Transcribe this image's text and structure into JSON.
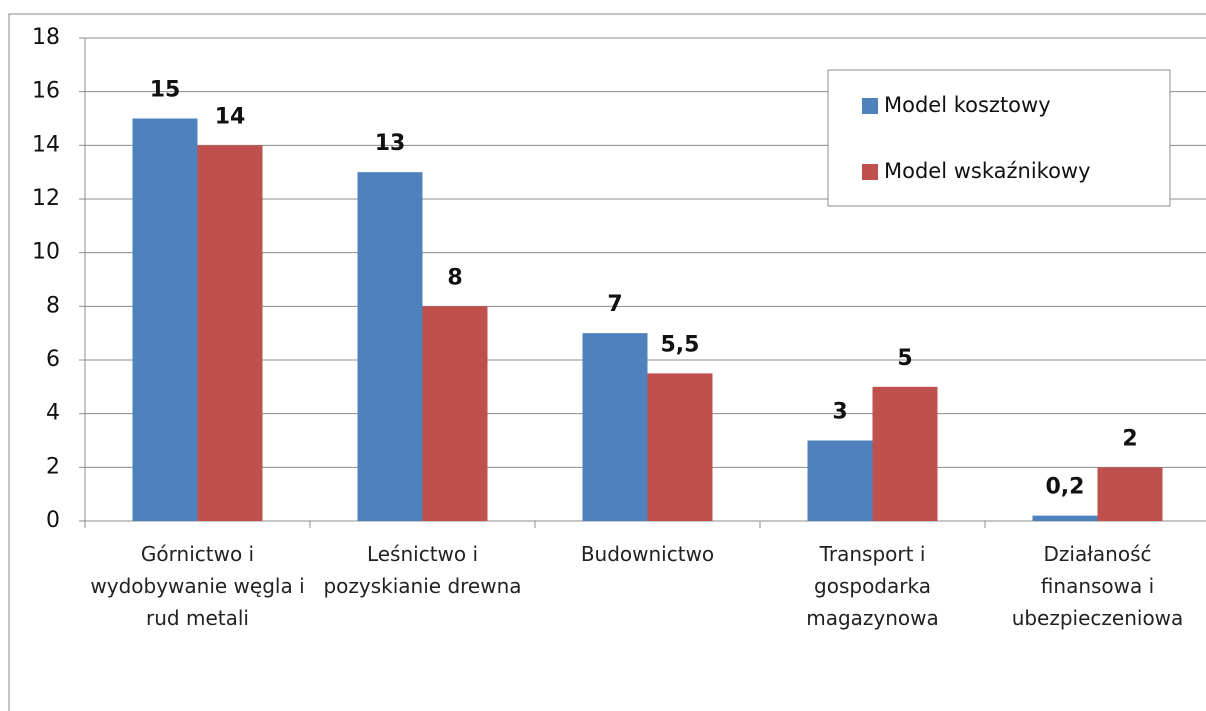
{
  "chart_data": {
    "type": "bar",
    "categories": [
      "Górnictwo i wydobywanie węgla i rud metali",
      "Leśnictwo i pozyskianie drewna",
      "Budownictwo",
      "Transport i gospodarka magazynowa",
      "Działaność finansowa i ubezpieczeniowa"
    ],
    "series": [
      {
        "name": "Model kosztowy",
        "color": "#4f81bd",
        "values": [
          15,
          13,
          7,
          3,
          0.2
        ],
        "value_labels": [
          "15",
          "13",
          "7",
          "3",
          "0,2"
        ]
      },
      {
        "name": "Model wskaźnikowy",
        "color": "#c0504d",
        "values": [
          14,
          8,
          5.5,
          5,
          2
        ],
        "value_labels": [
          "14",
          "8",
          "5,5",
          "5",
          "2"
        ]
      }
    ],
    "ylim": [
      0,
      18
    ],
    "yticks": [
      0,
      2,
      4,
      6,
      8,
      10,
      12,
      14,
      16,
      18
    ],
    "grid": true,
    "legend": "upper right"
  }
}
